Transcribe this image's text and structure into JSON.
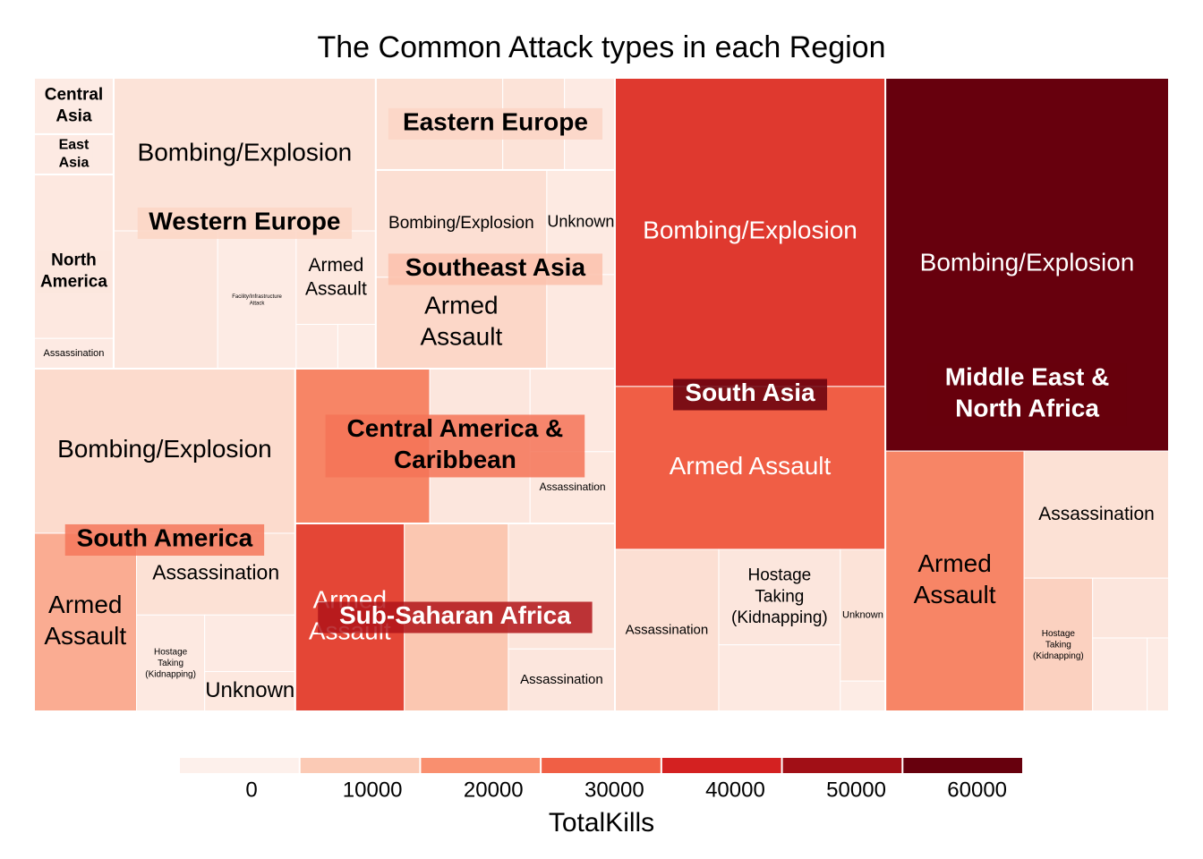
{
  "chart_data": {
    "type": "treemap",
    "title": "The Common Attack types in each Region",
    "regions": [
      {
        "name": "Middle East & North Africa",
        "tiles": [
          {
            "name": "Bombing/Explosion",
            "size": 1322,
            "kills": 63800
          },
          {
            "name": "Armed Assault",
            "size": 451,
            "kills": 21000
          },
          {
            "name": "Assassination",
            "size": 230,
            "kills": 3000
          },
          {
            "name": "Hostage Taking (Kidnapping)",
            "size": 114,
            "kills": 7000
          },
          {
            "name": null,
            "size": 57,
            "kills": 1500
          },
          {
            "name": null,
            "size": 50,
            "kills": 500
          },
          {
            "name": null,
            "size": 20,
            "kills": 200
          }
        ]
      },
      {
        "name": "South Asia",
        "tiles": [
          {
            "name": "Bombing/Explosion",
            "size": 1042,
            "kills": 35000
          },
          {
            "name": "Armed Assault",
            "size": 550,
            "kills": 29000
          },
          {
            "name": "Assassination",
            "size": 210,
            "kills": 3500
          },
          {
            "name": "Hostage Taking (Kidnapping)",
            "size": 145,
            "kills": 1500
          },
          {
            "name": null,
            "size": 101,
            "kills": 800
          },
          {
            "name": "Unknown",
            "size": 74,
            "kills": 2500
          },
          {
            "name": null,
            "size": 17,
            "kills": 100
          }
        ]
      },
      {
        "name": "South America",
        "tiles": [
          {
            "name": "Bombing/Explosion",
            "size": 537,
            "kills": 4500
          },
          {
            "name": "Armed Assault",
            "size": 228,
            "kills": 14000
          },
          {
            "name": "Assassination",
            "size": 162,
            "kills": 3000
          },
          {
            "name": "Hostage Taking (Kidnapping)",
            "size": 82,
            "kills": 800
          },
          {
            "name": null,
            "size": 64,
            "kills": 500
          },
          {
            "name": "Unknown",
            "size": 45,
            "kills": 1200
          }
        ]
      },
      {
        "name": "Western Europe",
        "tiles": [
          {
            "name": "Bombing/Explosion",
            "size": 501,
            "kills": 2500
          },
          {
            "name": null,
            "size": 179,
            "kills": 1500
          },
          {
            "name": "Facility/Infrastructure Attack",
            "size": 135,
            "kills": 300
          },
          {
            "name": "Armed Assault",
            "size": 93,
            "kills": 1200
          },
          {
            "name": null,
            "size": 23,
            "kills": 200
          },
          {
            "name": null,
            "size": 21,
            "kills": 100
          }
        ]
      },
      {
        "name": "Sub-Saharan Africa",
        "tiles": [
          {
            "name": "Armed Assault",
            "size": 256,
            "kills": 33000
          },
          {
            "name": null,
            "size": 244,
            "kills": 9500
          },
          {
            "name": null,
            "size": 167,
            "kills": 2000
          },
          {
            "name": "Assassination",
            "size": 83,
            "kills": 1500
          }
        ]
      },
      {
        "name": "Central America & Caribbean",
        "tiles": [
          {
            "name": null,
            "size": 260,
            "kills": 21000
          },
          {
            "name": null,
            "size": 194,
            "kills": 1500
          },
          {
            "name": null,
            "size": 88,
            "kills": 1000
          },
          {
            "name": "Assassination",
            "size": 76,
            "kills": 1200
          }
        ]
      },
      {
        "name": "Southeast Asia",
        "tiles": [
          {
            "name": "Bombing/Explosion",
            "size": 229,
            "kills": 3500
          },
          {
            "name": "Armed Assault",
            "size": 195,
            "kills": 5500
          },
          {
            "name": "Unknown",
            "size": 89,
            "kills": 600
          },
          {
            "name": null,
            "size": 80,
            "kills": 800
          }
        ]
      },
      {
        "name": "Eastern Europe",
        "tiles": [
          {
            "name": null,
            "size": 146,
            "kills": 3000
          },
          {
            "name": null,
            "size": 71,
            "kills": 2500
          },
          {
            "name": null,
            "size": 58,
            "kills": 500
          }
        ]
      },
      {
        "name": "North America",
        "tiles": [
          {
            "name": null,
            "size": 163,
            "kills": 1000
          },
          {
            "name": "Assassination",
            "size": 30,
            "kills": 500
          }
        ]
      },
      {
        "name": "Central Asia",
        "tiles": [
          {
            "name": null,
            "size": 56,
            "kills": 300
          }
        ]
      },
      {
        "name": "East Asia",
        "tiles": [
          {
            "name": null,
            "size": 40,
            "kills": 500
          }
        ]
      }
    ],
    "colorbar": {
      "title": "TotalKills",
      "colors": [
        "#fdf0eb",
        "#fbcab5",
        "#f98f6f",
        "#f05f45",
        "#d42121",
        "#a10f16",
        "#67000d"
      ],
      "ticks": [
        0,
        10000,
        20000,
        30000,
        40000,
        50000,
        60000
      ],
      "lim": [
        -6000,
        63800
      ]
    }
  }
}
